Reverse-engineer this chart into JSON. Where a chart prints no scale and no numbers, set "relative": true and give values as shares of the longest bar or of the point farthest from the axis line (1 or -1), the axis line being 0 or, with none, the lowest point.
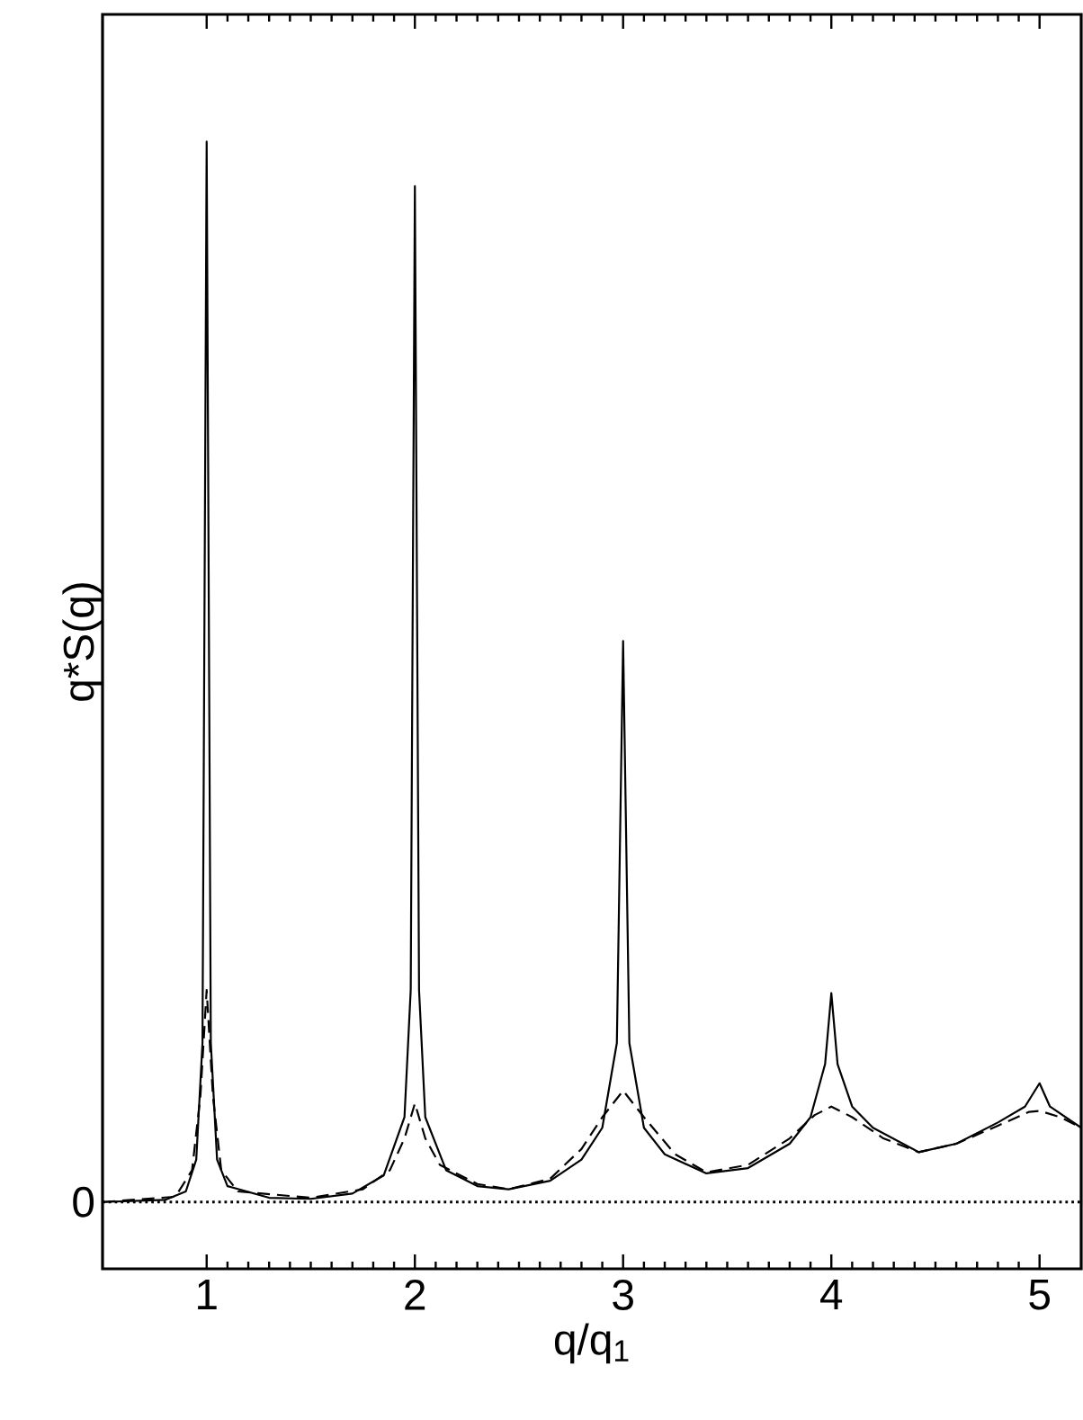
{
  "chart_data": {
    "type": "line",
    "relative": true,
    "xlabel": "q/q$_{1}$",
    "ylabel": "q*S(q)",
    "xlim": [
      0.5,
      5.2
    ],
    "xticks": [
      1,
      2,
      3,
      4,
      5
    ],
    "grid": false,
    "marker": "none",
    "ref_lines": [
      {
        "axis": "y",
        "value": 0,
        "label": "0",
        "line_style": "dotted",
        "color": "#000000"
      }
    ],
    "series": [
      {
        "color": "#000000",
        "line_style": "solid",
        "x": [
          0.5,
          0.8,
          0.9,
          0.95,
          0.98,
          1.0,
          1.02,
          1.05,
          1.1,
          1.3,
          1.5,
          1.7,
          1.85,
          1.95,
          1.98,
          2.0,
          2.02,
          2.05,
          2.15,
          2.3,
          2.45,
          2.65,
          2.8,
          2.9,
          2.97,
          3.0,
          3.03,
          3.1,
          3.2,
          3.4,
          3.6,
          3.8,
          3.9,
          3.97,
          4.0,
          4.03,
          4.1,
          4.2,
          4.42,
          4.6,
          4.8,
          4.93,
          5.0,
          5.05,
          5.2
        ],
        "values": [
          0,
          0.002,
          0.01,
          0.04,
          0.15,
          1.0,
          0.15,
          0.04,
          0.015,
          0.004,
          0.003,
          0.008,
          0.025,
          0.08,
          0.2,
          0.958,
          0.2,
          0.08,
          0.03,
          0.015,
          0.012,
          0.02,
          0.04,
          0.07,
          0.15,
          0.529,
          0.15,
          0.07,
          0.045,
          0.027,
          0.032,
          0.055,
          0.08,
          0.13,
          0.197,
          0.13,
          0.09,
          0.07,
          0.047,
          0.055,
          0.075,
          0.09,
          0.112,
          0.09,
          0.07
        ]
      },
      {
        "color": "#000000",
        "line_style": "dashed",
        "x": [
          0.5,
          0.85,
          0.93,
          0.97,
          1.0,
          1.03,
          1.07,
          1.15,
          1.5,
          1.75,
          1.88,
          1.95,
          2.0,
          2.05,
          2.12,
          2.3,
          2.45,
          2.65,
          2.8,
          2.9,
          3.0,
          3.1,
          3.25,
          3.4,
          3.6,
          3.8,
          3.92,
          4.0,
          4.1,
          4.25,
          4.42,
          4.6,
          4.8,
          4.95,
          5.0,
          5.1,
          5.2
        ],
        "values": [
          0,
          0.005,
          0.03,
          0.1,
          0.2,
          0.1,
          0.03,
          0.01,
          0.004,
          0.012,
          0.03,
          0.06,
          0.093,
          0.06,
          0.035,
          0.017,
          0.012,
          0.022,
          0.05,
          0.08,
          0.105,
          0.08,
          0.045,
          0.028,
          0.035,
          0.06,
          0.082,
          0.09,
          0.08,
          0.06,
          0.047,
          0.055,
          0.072,
          0.085,
          0.086,
          0.08,
          0.07
        ]
      }
    ]
  }
}
